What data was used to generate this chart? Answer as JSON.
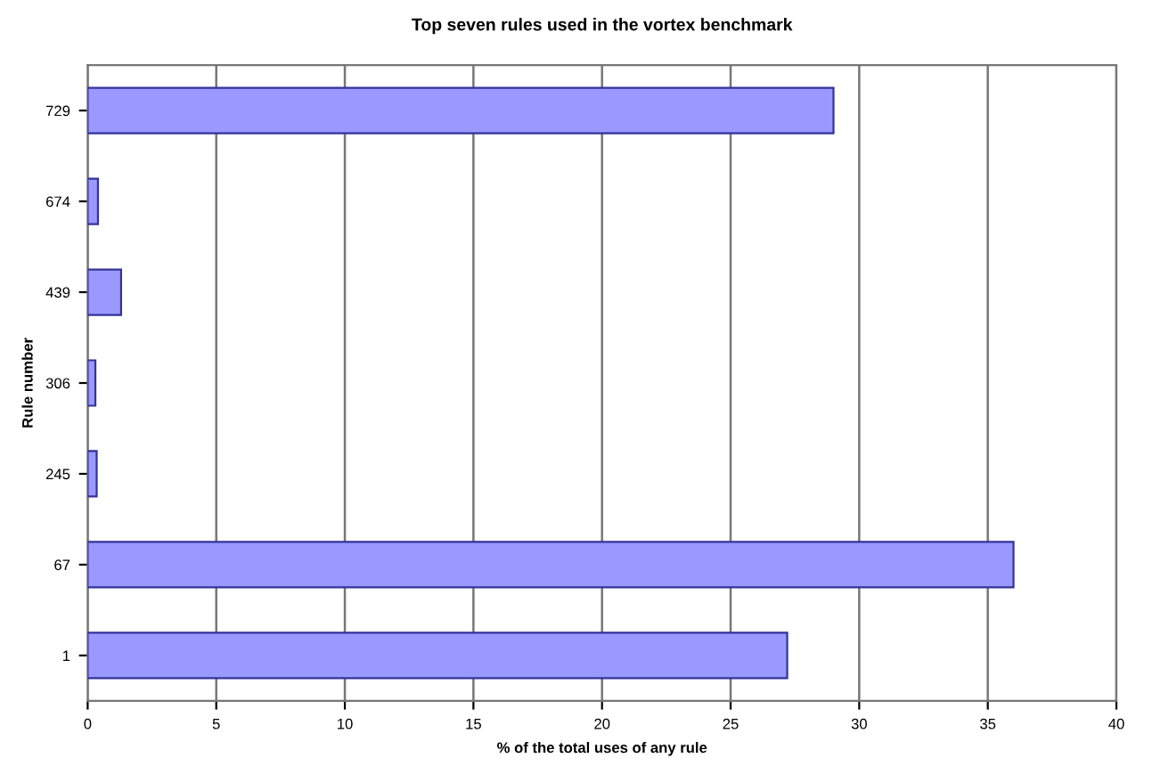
{
  "chart_data": {
    "type": "bar",
    "orientation": "horizontal",
    "title": "Top seven rules used in the vortex benchmark",
    "xlabel": "% of the total uses of any rule",
    "ylabel": "Rule number",
    "categories": [
      "729",
      "674",
      "439",
      "306",
      "245",
      "67",
      "1"
    ],
    "values": [
      29.0,
      0.4,
      1.3,
      0.3,
      0.35,
      36.0,
      27.2
    ],
    "color": "#9999ff",
    "xlim": [
      0,
      40
    ],
    "xticks": [
      0,
      5,
      10,
      15,
      20,
      25,
      30,
      35,
      40
    ],
    "grid": "x"
  }
}
